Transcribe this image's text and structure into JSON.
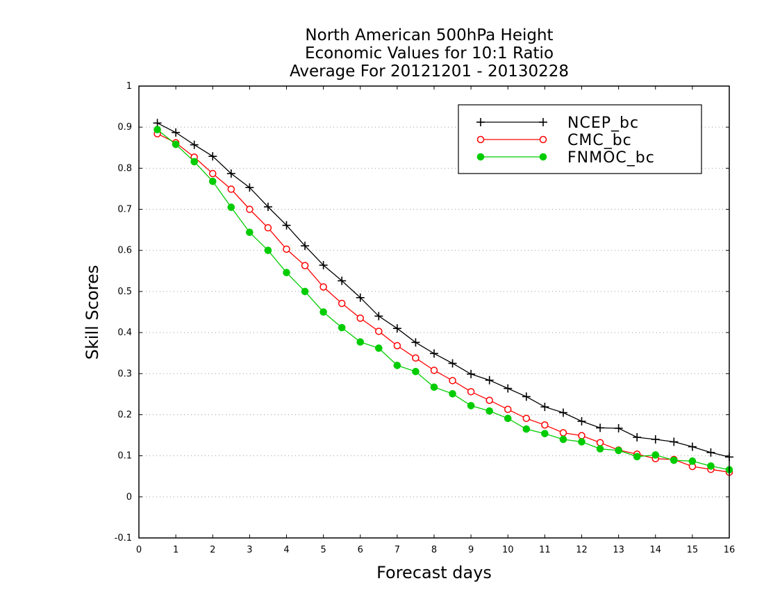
{
  "chart_data": {
    "type": "line",
    "title": [
      "North American 500hPa Height",
      "Economic Values for 10:1 Ratio",
      "Average For 20121201 - 20130228"
    ],
    "xlabel": "Forecast days",
    "ylabel": "Skill Scores",
    "xlim": [
      0,
      16
    ],
    "ylim": [
      -0.1,
      1
    ],
    "x_ticks": [
      "0",
      "1",
      "2",
      "3",
      "4",
      "5",
      "6",
      "7",
      "8",
      "9",
      "10",
      "11",
      "12",
      "13",
      "14",
      "15",
      "16"
    ],
    "y_ticks": [
      "-0.1",
      "0",
      "0.1",
      "0.2",
      "0.3",
      "0.4",
      "0.5",
      "0.6",
      "0.7",
      "0.8",
      "0.9",
      "1"
    ],
    "grid": "horizontal dotted",
    "legend_position": "top-right",
    "x": [
      0.5,
      1,
      1.5,
      2,
      2.5,
      3,
      3.5,
      4,
      4.5,
      5,
      5.5,
      6,
      6.5,
      7,
      7.5,
      8,
      8.5,
      9,
      9.5,
      10,
      10.5,
      11,
      11.5,
      12,
      12.5,
      13,
      13.5,
      14,
      14.5,
      15,
      15.5,
      16
    ],
    "series": [
      {
        "name": "NCEP_bc",
        "color": "#000000",
        "marker": "plus",
        "values": [
          0.91,
          0.887,
          0.857,
          0.829,
          0.787,
          0.753,
          0.706,
          0.661,
          0.611,
          0.564,
          0.526,
          0.485,
          0.44,
          0.41,
          0.376,
          0.349,
          0.325,
          0.299,
          0.284,
          0.264,
          0.244,
          0.219,
          0.205,
          0.184,
          0.168,
          0.167,
          0.145,
          0.14,
          0.134,
          0.122,
          0.108,
          0.097
        ]
      },
      {
        "name": "CMC_bc",
        "color": "#ff0000",
        "marker": "open-circle",
        "values": [
          0.884,
          0.862,
          0.827,
          0.787,
          0.749,
          0.7,
          0.655,
          0.603,
          0.563,
          0.511,
          0.471,
          0.435,
          0.403,
          0.368,
          0.338,
          0.308,
          0.283,
          0.256,
          0.235,
          0.213,
          0.191,
          0.175,
          0.156,
          0.149,
          0.132,
          0.114,
          0.104,
          0.093,
          0.091,
          0.074,
          0.067,
          0.06
        ]
      },
      {
        "name": "FNMOC_bc",
        "color": "#00cc00",
        "marker": "filled-circle",
        "values": [
          0.894,
          0.858,
          0.816,
          0.768,
          0.705,
          0.644,
          0.6,
          0.546,
          0.5,
          0.45,
          0.412,
          0.377,
          0.362,
          0.32,
          0.305,
          0.267,
          0.251,
          0.222,
          0.209,
          0.191,
          0.165,
          0.154,
          0.14,
          0.134,
          0.117,
          0.113,
          0.098,
          0.102,
          0.089,
          0.087,
          0.075,
          0.066
        ]
      }
    ]
  }
}
